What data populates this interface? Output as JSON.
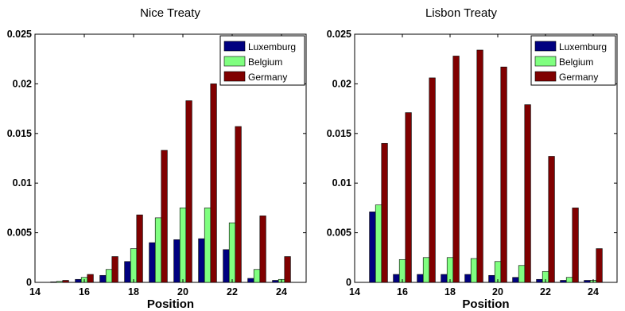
{
  "chart_data": [
    {
      "type": "bar",
      "title": "Nice Treaty",
      "xlabel": "Position",
      "ylabel": "",
      "xlim": [
        14,
        25
      ],
      "ylim": [
        0,
        0.025
      ],
      "xticks": [
        "14",
        "16",
        "18",
        "20",
        "22",
        "24"
      ],
      "yticks": [
        "0",
        "0.005",
        "0.01",
        "0.015",
        "0.02",
        "0.025"
      ],
      "legend": "top-right",
      "x": [
        15,
        16,
        17,
        18,
        19,
        20,
        21,
        22,
        23,
        24
      ],
      "series": [
        {
          "name": "Luxemburg",
          "color": "#000080",
          "values": [
            5e-05,
            0.0003,
            0.0007,
            0.0021,
            0.004,
            0.0043,
            0.0044,
            0.0033,
            0.0004,
            0.0002
          ]
        },
        {
          "name": "Belgium",
          "color": "#80ff80",
          "values": [
            0.0001,
            0.0005,
            0.0013,
            0.0034,
            0.0065,
            0.0075,
            0.0075,
            0.006,
            0.0013,
            0.0003
          ]
        },
        {
          "name": "Germany",
          "color": "#800000",
          "values": [
            0.0002,
            0.0008,
            0.0026,
            0.0068,
            0.0133,
            0.0183,
            0.02,
            0.0157,
            0.0067,
            0.0026
          ]
        }
      ]
    },
    {
      "type": "bar",
      "title": "Lisbon Treaty",
      "xlabel": "Position",
      "ylabel": "",
      "xlim": [
        14,
        25
      ],
      "ylim": [
        0,
        0.025
      ],
      "xticks": [
        "14",
        "16",
        "18",
        "20",
        "22",
        "24"
      ],
      "yticks": [
        "0",
        "0.005",
        "0.01",
        "0.015",
        "0.02",
        "0.025"
      ],
      "legend": "top-right",
      "x": [
        15,
        16,
        17,
        18,
        19,
        20,
        21,
        22,
        23,
        24
      ],
      "series": [
        {
          "name": "Luxemburg",
          "color": "#000080",
          "values": [
            0.0071,
            0.0008,
            0.0008,
            0.0008,
            0.0008,
            0.0007,
            0.0005,
            0.0003,
            0.0002,
            0.0002
          ]
        },
        {
          "name": "Belgium",
          "color": "#80ff80",
          "values": [
            0.0078,
            0.0023,
            0.0025,
            0.0025,
            0.0024,
            0.0021,
            0.0017,
            0.0011,
            0.0005,
            0.0002
          ]
        },
        {
          "name": "Germany",
          "color": "#800000",
          "values": [
            0.014,
            0.0171,
            0.0206,
            0.0228,
            0.0234,
            0.0217,
            0.0179,
            0.0127,
            0.0075,
            0.0034
          ]
        }
      ]
    }
  ]
}
